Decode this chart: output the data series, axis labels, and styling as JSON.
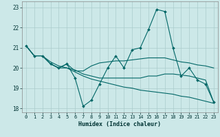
{
  "xlabel": "Humidex (Indice chaleur)",
  "bg_color": "#cce8e8",
  "grid_color": "#aacccc",
  "line_color": "#006666",
  "xlim": [
    -0.5,
    23.5
  ],
  "ylim": [
    17.8,
    23.3
  ],
  "yticks": [
    18,
    19,
    20,
    21,
    22,
    23
  ],
  "xticks": [
    0,
    1,
    2,
    3,
    4,
    5,
    6,
    7,
    8,
    9,
    10,
    11,
    12,
    13,
    14,
    15,
    16,
    17,
    18,
    19,
    20,
    21,
    22,
    23
  ],
  "series": [
    [
      21.1,
      20.6,
      20.6,
      20.2,
      20.0,
      20.2,
      19.5,
      18.1,
      18.4,
      19.2,
      20.0,
      20.6,
      20.0,
      20.9,
      21.0,
      21.9,
      22.9,
      22.8,
      21.0,
      19.6,
      20.0,
      19.4,
      19.2,
      18.3
    ],
    [
      21.1,
      20.6,
      20.6,
      20.2,
      20.0,
      20.2,
      19.85,
      19.85,
      20.1,
      20.25,
      20.3,
      20.35,
      20.35,
      20.4,
      20.45,
      20.5,
      20.5,
      20.5,
      20.4,
      20.3,
      20.25,
      20.15,
      20.1,
      20.0
    ],
    [
      21.1,
      20.6,
      20.6,
      20.3,
      20.1,
      20.0,
      19.9,
      19.7,
      19.6,
      19.5,
      19.5,
      19.5,
      19.5,
      19.5,
      19.5,
      19.6,
      19.6,
      19.7,
      19.7,
      19.65,
      19.6,
      19.5,
      19.4,
      18.3
    ],
    [
      21.1,
      20.6,
      20.6,
      20.2,
      20.0,
      20.0,
      19.8,
      19.6,
      19.45,
      19.35,
      19.25,
      19.15,
      19.05,
      19.0,
      18.9,
      18.85,
      18.8,
      18.75,
      18.7,
      18.6,
      18.55,
      18.45,
      18.35,
      18.25
    ]
  ],
  "markers": [
    true,
    false,
    false,
    false
  ],
  "xlabel_fontsize": 6,
  "tick_fontsize": 5,
  "tick_color": "#003333",
  "xlabel_color": "#003333"
}
